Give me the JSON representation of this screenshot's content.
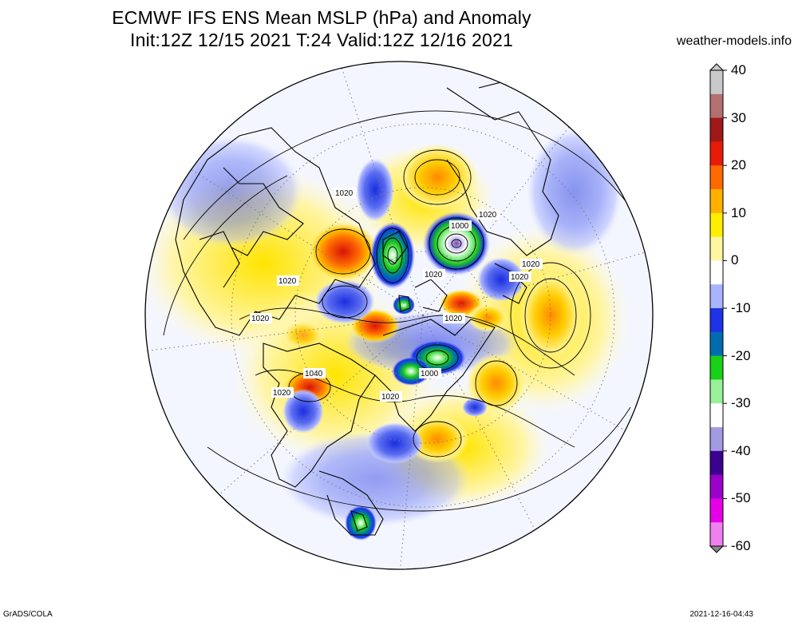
{
  "header": {
    "title_line_1": "ECMWF IFS ENS Mean MSLP (hPa) and Anomaly",
    "title_line_2": "Init:12Z 12/15 2021  T:24 Valid:12Z 12/16 2021",
    "site": "weather-models.info"
  },
  "footer": {
    "left": "GrADS/COLA",
    "right": "2021-12-16-04:43"
  },
  "colorbar": {
    "tick_labels": [
      "40",
      "30",
      "20",
      "10",
      "0",
      "-10",
      "-20",
      "-30",
      "-40",
      "-50",
      "-60"
    ],
    "stops": [
      {
        "value": 40,
        "color": "#c9c9c9"
      },
      {
        "value": 35,
        "color": "#b47070"
      },
      {
        "value": 30,
        "color": "#a01818"
      },
      {
        "value": 25,
        "color": "#e81a0a"
      },
      {
        "value": 20,
        "color": "#ff6a00"
      },
      {
        "value": 15,
        "color": "#ffb000"
      },
      {
        "value": 10,
        "color": "#ffee00"
      },
      {
        "value": 5,
        "color": "#fff6a0"
      },
      {
        "value": 0,
        "color": "#ffffff"
      },
      {
        "value": -5,
        "color": "#a8b4ff"
      },
      {
        "value": -10,
        "color": "#1e32e6"
      },
      {
        "value": -15,
        "color": "#006cb0"
      },
      {
        "value": -20,
        "color": "#18d018"
      },
      {
        "value": -25,
        "color": "#98f098"
      },
      {
        "value": -30,
        "color": "#ffffff"
      },
      {
        "value": -35,
        "color": "#a39be0"
      },
      {
        "value": -40,
        "color": "#3a0090"
      },
      {
        "value": -45,
        "color": "#9a00c8"
      },
      {
        "value": -50,
        "color": "#e600e6"
      },
      {
        "value": -55,
        "color": "#f080f0"
      },
      {
        "value": -60,
        "color": "#8a8a8a"
      }
    ]
  },
  "contour_labels": [
    "1020",
    "1000",
    "1020",
    "1020",
    "1020",
    "1020",
    "1020",
    "1020",
    "1020",
    "1040",
    "1000",
    "1020",
    "1020"
  ]
}
